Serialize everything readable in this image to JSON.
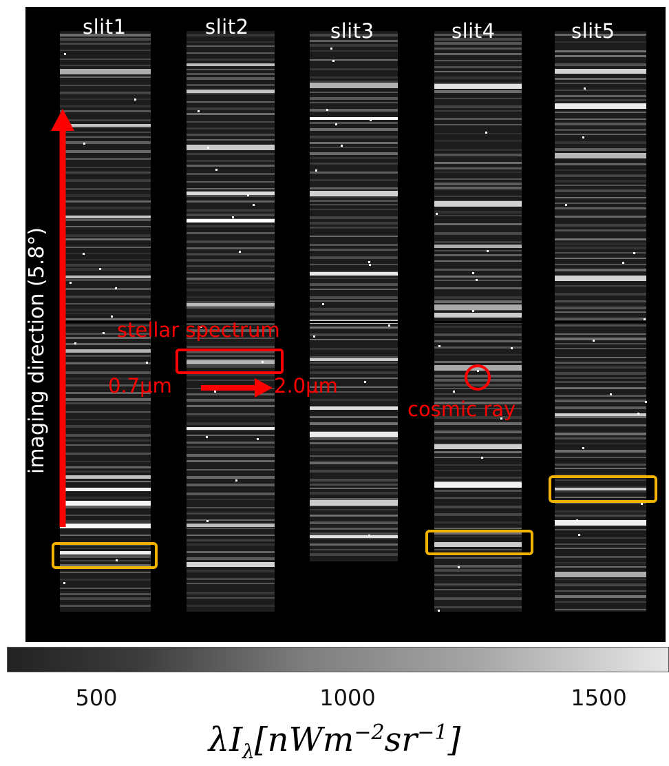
{
  "slits": [
    {
      "label": "slit1"
    },
    {
      "label": "slit2"
    },
    {
      "label": "slit3"
    },
    {
      "label": "slit4"
    },
    {
      "label": "slit5"
    }
  ],
  "annotations": {
    "imaging_direction": "imaging direction (5.8°)",
    "stellar_spectrum": "stellar spectrum",
    "wavelength_start": "0.7μm",
    "wavelength_end": "2.0μm",
    "cosmic_ray": "cosmic ray"
  },
  "colorbar": {
    "ticks": [
      "500",
      "1000",
      "1500"
    ],
    "unit_label": "λIλ[nWm−2sr−1]"
  },
  "colors": {
    "annotation": "#ff0000",
    "highlight_box": "#f2b200",
    "background": "#000000"
  }
}
